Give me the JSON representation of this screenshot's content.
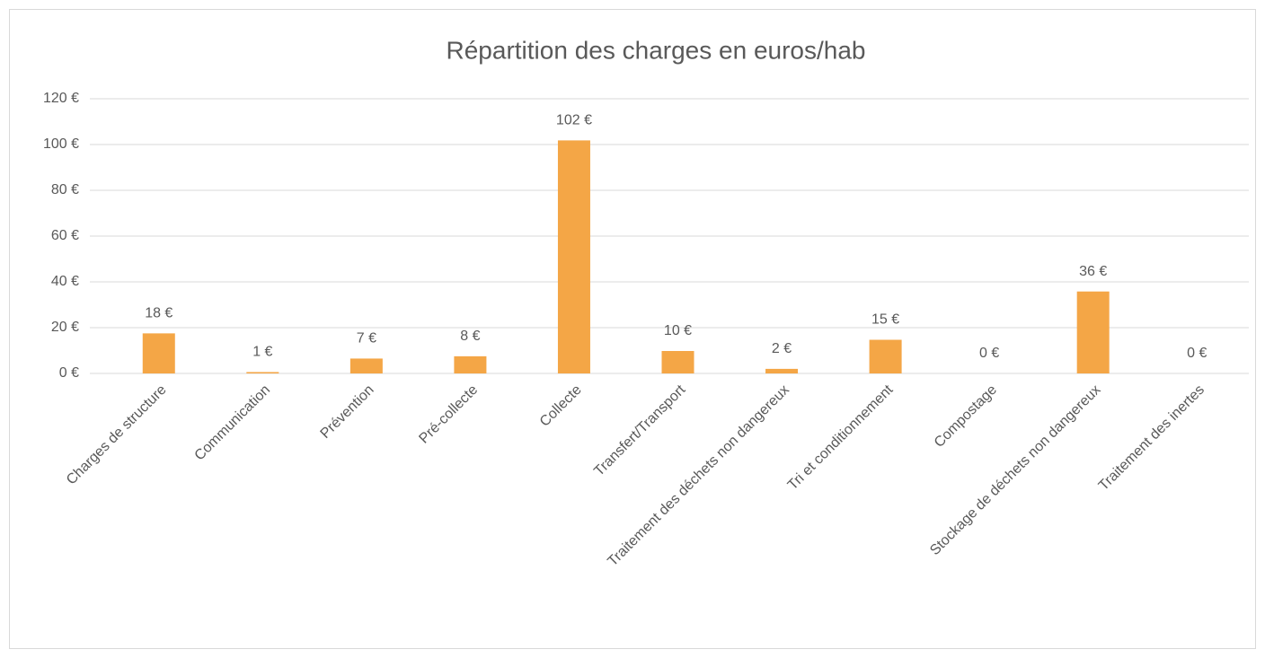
{
  "chart_data": {
    "type": "bar",
    "title": "Répartition des charges en euros/hab",
    "categories": [
      "Charges de structure",
      "Communication",
      "Prévention",
      "Pré-collecte",
      "Collecte",
      "Transfert/Transport",
      "Traitement des déchets non dangereux",
      "Tri et conditionnement",
      "Compostage",
      "Stockage de déchets non dangereux",
      "Traitement des inertes"
    ],
    "values": [
      17.5,
      0.6,
      6.5,
      7.5,
      101.8,
      9.8,
      2,
      14.7,
      0,
      35.8,
      0
    ],
    "value_labels": [
      "18 €",
      "1 €",
      "7 €",
      "8 €",
      "102 €",
      "10 €",
      "2 €",
      "15 €",
      "0 €",
      "36 €",
      "0 €"
    ],
    "color": "#f4a646",
    "ylim": [
      0,
      120
    ],
    "yticks": [
      {
        "value": 0,
        "label": "0 €"
      },
      {
        "value": 20,
        "label": "20 €"
      },
      {
        "value": 40,
        "label": "40 €"
      },
      {
        "value": 60,
        "label": "60 €"
      },
      {
        "value": 80,
        "label": "80 €"
      },
      {
        "value": 100,
        "label": "100 €"
      },
      {
        "value": 120,
        "label": "120 €"
      }
    ],
    "grid": true
  }
}
